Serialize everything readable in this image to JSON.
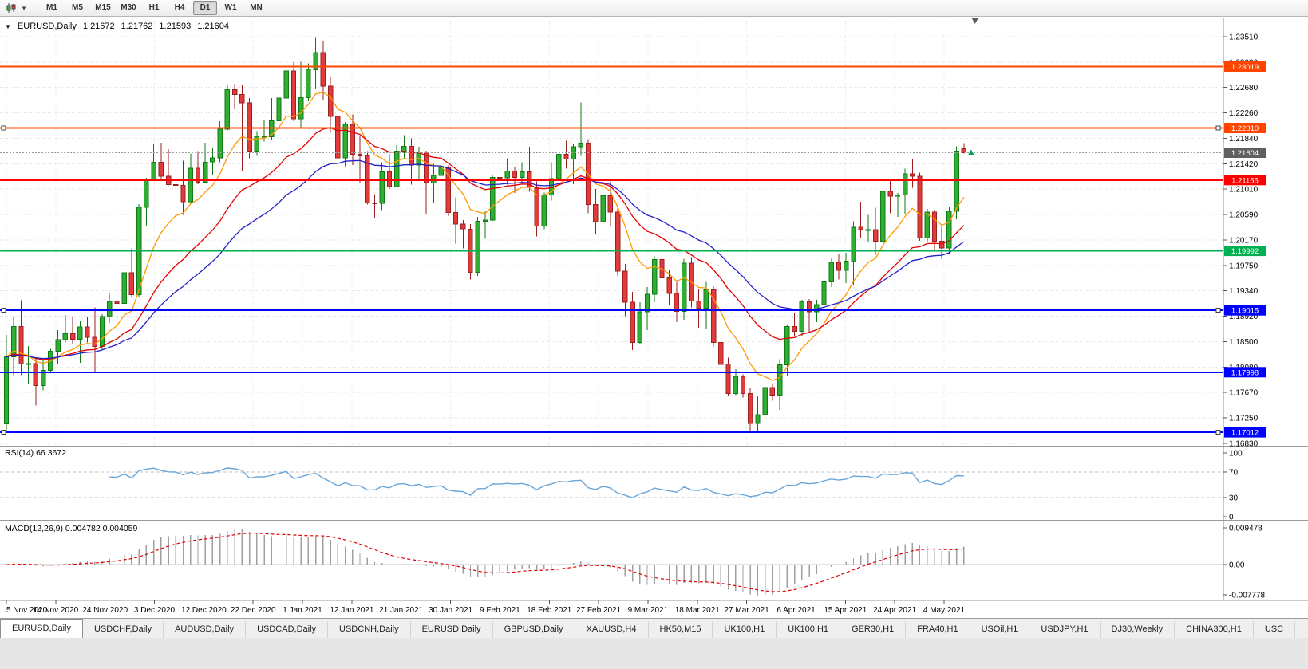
{
  "toolbar": {
    "chart_type_icon": "candlestick-chart-icon",
    "dropdown_icon": "chevron-down-icon",
    "timeframes": [
      "M1",
      "M5",
      "M15",
      "M30",
      "H1",
      "H4",
      "D1",
      "W1",
      "MN"
    ],
    "active_timeframe": "D1"
  },
  "header": {
    "expand_icon": "down-triangle-icon",
    "symbol": "EURUSD,Daily",
    "open": "1.21672",
    "high": "1.21762",
    "low": "1.21593",
    "close": "1.21604"
  },
  "price_axis": {
    "ticks": [
      "1.23510",
      "1.23090",
      "1.22680",
      "1.22260",
      "1.21840",
      "1.21420",
      "1.21010",
      "1.20590",
      "1.20170",
      "1.19750",
      "1.19340",
      "1.18920",
      "1.18500",
      "1.18080",
      "1.17670",
      "1.17250",
      "1.16830"
    ]
  },
  "date_axis": {
    "labels": [
      "5 Nov 2020",
      "14 Nov 2020",
      "24 Nov 2020",
      "3 Dec 2020",
      "12 Dec 2020",
      "22 Dec 2020",
      "1 Jan 2021",
      "12 Jan 2021",
      "21 Jan 2021",
      "30 Jan 2021",
      "9 Feb 2021",
      "18 Feb 2021",
      "27 Feb 2021",
      "9 Mar 2021",
      "18 Mar 2021",
      "27 Mar 2021",
      "6 Apr 2021",
      "15 Apr 2021",
      "24 Apr 2021",
      "4 May 2021"
    ]
  },
  "current_price": {
    "value": 1.21604,
    "label": "1.21604",
    "badge_color": "#5f5f5f"
  },
  "hlines": [
    {
      "price": 1.23019,
      "label": "1.23019",
      "color": "#ff4500",
      "width": 2,
      "handles": false
    },
    {
      "price": 1.2201,
      "label": "1.22010",
      "color": "#ff4500",
      "width": 2,
      "handles": true
    },
    {
      "price": 1.21155,
      "label": "1.21155",
      "color": "#ff0000",
      "width": 2,
      "handles": false
    },
    {
      "price": 1.19992,
      "label": "1.19992",
      "color": "#00b050",
      "width": 2,
      "handles": false
    },
    {
      "price": 1.19015,
      "label": "1.19015",
      "color": "#0000ff",
      "width": 2,
      "handles": true
    },
    {
      "price": 1.17998,
      "label": "1.17998",
      "color": "#0000ff",
      "width": 2,
      "handles": false
    },
    {
      "price": 1.17012,
      "label": "1.17012",
      "color": "#0000ff",
      "width": 2,
      "handles": true
    }
  ],
  "moving_averages": [
    {
      "period": 9,
      "type": "ema",
      "color": "#ff9900"
    },
    {
      "period": 21,
      "type": "ema",
      "color": "#e60000"
    },
    {
      "period": 34,
      "type": "ema",
      "color": "#2222cc"
    }
  ],
  "indicators": {
    "rsi": {
      "label": "RSI(14) 66.3672",
      "period": 14,
      "value": 66.3672,
      "levels": [
        "100",
        "70",
        "30",
        "0"
      ],
      "level_lines": [
        70,
        30
      ],
      "line_color": "#6aa5d8"
    },
    "macd": {
      "label": "MACD(12,26,9) 0.004782 0.004059",
      "fast": 12,
      "slow": 26,
      "signal": 9,
      "macd_value": 0.004782,
      "signal_value": 0.004059,
      "axis_labels": [
        "0.009478",
        "0.00",
        "-0.007778"
      ],
      "axis_values": [
        0.009478,
        0,
        -0.007778
      ],
      "histogram_color": "#a0a0a0",
      "signal_color": "#e00000"
    }
  },
  "candle_colors": {
    "up_fill": "#2fae33",
    "up_stroke": "#0f7a16",
    "down_fill": "#e23b3b",
    "down_stroke": "#9c1f1f"
  },
  "marker": {
    "shape": "up-arrow",
    "color": "#00a651"
  },
  "tabs": [
    "EURUSD,Daily",
    "USDCHF,Daily",
    "AUDUSD,Daily",
    "USDCAD,Daily",
    "USDCNH,Daily",
    "EURUSD,Daily",
    "GBPUSD,Daily",
    "XAUUSD,H4",
    "HK50,M15",
    "UK100,H1",
    "UK100,H1",
    "GER30,H1",
    "FRA40,H1",
    "USOil,H1",
    "USDJPY,H1",
    "DJ30,Weekly",
    "CHINA300,H1",
    "USC"
  ],
  "active_tab_index": 0,
  "chart_data": {
    "type": "candlestick",
    "title": "EURUSD,Daily",
    "ylim": [
      1.1683,
      1.2351
    ],
    "x_labels": [
      "5 Nov 2020",
      "14 Nov 2020",
      "24 Nov 2020",
      "3 Dec 2020",
      "12 Dec 2020",
      "22 Dec 2020",
      "1 Jan 2021",
      "12 Jan 2021",
      "21 Jan 2021",
      "30 Jan 2021",
      "9 Feb 2021",
      "18 Feb 2021",
      "27 Feb 2021",
      "9 Mar 2021",
      "18 Mar 2021",
      "27 Mar 2021",
      "6 Apr 2021",
      "15 Apr 2021",
      "24 Apr 2021",
      "4 May 2021"
    ],
    "candles": [
      [
        1.1715,
        1.1861,
        1.1703,
        1.1825
      ],
      [
        1.1825,
        1.189,
        1.1795,
        1.1875
      ],
      [
        1.1875,
        1.1918,
        1.1795,
        1.1813
      ],
      [
        1.1813,
        1.1843,
        1.178,
        1.1814
      ],
      [
        1.1814,
        1.1824,
        1.1745,
        1.1778
      ],
      [
        1.1778,
        1.1823,
        1.177,
        1.1803
      ],
      [
        1.1803,
        1.1838,
        1.1799,
        1.1834
      ],
      [
        1.1834,
        1.1869,
        1.1814,
        1.1853
      ],
      [
        1.1853,
        1.1894,
        1.1849,
        1.1863
      ],
      [
        1.1863,
        1.1891,
        1.1846,
        1.1854
      ],
      [
        1.1854,
        1.1885,
        1.1815,
        1.1874
      ],
      [
        1.1874,
        1.1891,
        1.1849,
        1.1857
      ],
      [
        1.1857,
        1.1906,
        1.18,
        1.1842
      ],
      [
        1.1842,
        1.1895,
        1.1836,
        1.1891
      ],
      [
        1.1891,
        1.1929,
        1.1881,
        1.1916
      ],
      [
        1.1916,
        1.1941,
        1.1906,
        1.1913
      ],
      [
        1.1913,
        1.1964,
        1.1909,
        1.1963
      ],
      [
        1.1963,
        1.2003,
        1.1923,
        1.1927
      ],
      [
        1.1927,
        1.2076,
        1.1924,
        1.2071
      ],
      [
        1.2071,
        1.2119,
        1.204,
        1.2115
      ],
      [
        1.2115,
        1.2175,
        1.2114,
        1.2145
      ],
      [
        1.2145,
        1.2177,
        1.2115,
        1.2122
      ],
      [
        1.2122,
        1.2166,
        1.2107,
        1.2108
      ],
      [
        1.2108,
        1.2134,
        1.2095,
        1.2107
      ],
      [
        1.2107,
        1.2147,
        1.2058,
        1.208
      ],
      [
        1.208,
        1.2159,
        1.2076,
        1.2135
      ],
      [
        1.2135,
        1.2163,
        1.2109,
        1.2112
      ],
      [
        1.2112,
        1.2177,
        1.211,
        1.2145
      ],
      [
        1.2145,
        1.2169,
        1.2123,
        1.2152
      ],
      [
        1.2152,
        1.2212,
        1.2145,
        1.2199
      ],
      [
        1.2199,
        1.2272,
        1.2197,
        1.2264
      ],
      [
        1.2264,
        1.2273,
        1.2232,
        1.2256
      ],
      [
        1.2256,
        1.2271,
        1.213,
        1.2242
      ],
      [
        1.2242,
        1.225,
        1.2151,
        1.2163
      ],
      [
        1.2163,
        1.2196,
        1.2155,
        1.2187
      ],
      [
        1.2187,
        1.2215,
        1.2179,
        1.2187
      ],
      [
        1.2187,
        1.225,
        1.2181,
        1.2213
      ],
      [
        1.2213,
        1.2275,
        1.2208,
        1.225
      ],
      [
        1.225,
        1.231,
        1.2245,
        1.2295
      ],
      [
        1.2295,
        1.2309,
        1.2212,
        1.2216
      ],
      [
        1.2216,
        1.231,
        1.22,
        1.2251
      ],
      [
        1.2251,
        1.2307,
        1.2245,
        1.2297
      ],
      [
        1.2297,
        1.2349,
        1.2266,
        1.2325
      ],
      [
        1.2325,
        1.2344,
        1.2246,
        1.227
      ],
      [
        1.227,
        1.2285,
        1.2193,
        1.222
      ],
      [
        1.222,
        1.2227,
        1.2132,
        1.2152
      ],
      [
        1.2152,
        1.2211,
        1.2138,
        1.2207
      ],
      [
        1.2207,
        1.2223,
        1.214,
        1.2158
      ],
      [
        1.2158,
        1.2188,
        1.2111,
        1.2155
      ],
      [
        1.2155,
        1.2163,
        1.2075,
        1.2078
      ],
      [
        1.2078,
        1.2092,
        1.2053,
        1.2077
      ],
      [
        1.2077,
        1.2145,
        1.2066,
        1.2129
      ],
      [
        1.2129,
        1.2158,
        1.2101,
        1.2105
      ],
      [
        1.2105,
        1.2173,
        1.2104,
        1.2163
      ],
      [
        1.2163,
        1.2189,
        1.215,
        1.2171
      ],
      [
        1.2171,
        1.2184,
        1.2108,
        1.214
      ],
      [
        1.214,
        1.217,
        1.2118,
        1.216
      ],
      [
        1.216,
        1.2164,
        1.2059,
        1.2111
      ],
      [
        1.2111,
        1.2142,
        1.2078,
        1.2123
      ],
      [
        1.2123,
        1.2157,
        1.2093,
        1.2136
      ],
      [
        1.2136,
        1.214,
        1.2056,
        1.2062
      ],
      [
        1.2062,
        1.2087,
        1.2011,
        1.2043
      ],
      [
        1.2043,
        1.205,
        1.2003,
        1.2035
      ],
      [
        1.2035,
        1.2043,
        1.1952,
        1.1964
      ],
      [
        1.1964,
        1.2055,
        1.1958,
        1.2048
      ],
      [
        1.2048,
        1.2064,
        1.2019,
        1.205
      ],
      [
        1.205,
        1.2124,
        1.2048,
        1.212
      ],
      [
        1.212,
        1.2145,
        1.2098,
        1.2119
      ],
      [
        1.2119,
        1.2151,
        1.2108,
        1.213
      ],
      [
        1.213,
        1.2136,
        1.2094,
        1.212
      ],
      [
        1.212,
        1.2145,
        1.211,
        1.2129
      ],
      [
        1.2129,
        1.217,
        1.2096,
        1.2104
      ],
      [
        1.2104,
        1.2113,
        1.2023,
        1.204
      ],
      [
        1.204,
        1.2095,
        1.2035,
        1.2091
      ],
      [
        1.2091,
        1.2145,
        1.2082,
        1.2118
      ],
      [
        1.2118,
        1.2168,
        1.2105,
        1.2158
      ],
      [
        1.2158,
        1.218,
        1.2134,
        1.215
      ],
      [
        1.215,
        1.2174,
        1.2109,
        1.217
      ],
      [
        1.217,
        1.2243,
        1.2155,
        1.2176
      ],
      [
        1.2176,
        1.2183,
        1.2061,
        1.2075
      ],
      [
        1.2075,
        1.2101,
        1.2026,
        1.2047
      ],
      [
        1.2047,
        1.2094,
        1.2043,
        1.209
      ],
      [
        1.209,
        1.2113,
        1.204,
        1.2063
      ],
      [
        1.2063,
        1.2069,
        1.1959,
        1.1966
      ],
      [
        1.1966,
        1.1978,
        1.1892,
        1.1915
      ],
      [
        1.1915,
        1.1932,
        1.1836,
        1.1849
      ],
      [
        1.1849,
        1.1915,
        1.1846,
        1.1899
      ],
      [
        1.1899,
        1.194,
        1.1869,
        1.1928
      ],
      [
        1.1928,
        1.199,
        1.1915,
        1.1985
      ],
      [
        1.1985,
        1.1989,
        1.191,
        1.1955
      ],
      [
        1.1955,
        1.1968,
        1.1911,
        1.1929
      ],
      [
        1.1929,
        1.1951,
        1.1882,
        1.19
      ],
      [
        1.19,
        1.1986,
        1.1886,
        1.1979
      ],
      [
        1.1979,
        1.1989,
        1.1906,
        1.1917
      ],
      [
        1.1917,
        1.1936,
        1.1873,
        1.1905
      ],
      [
        1.1905,
        1.1948,
        1.1871,
        1.1935
      ],
      [
        1.1935,
        1.1941,
        1.1842,
        1.1849
      ],
      [
        1.1849,
        1.1854,
        1.1809,
        1.1813
      ],
      [
        1.1813,
        1.1824,
        1.176,
        1.1765
      ],
      [
        1.1765,
        1.1805,
        1.1761,
        1.1793
      ],
      [
        1.1793,
        1.1796,
        1.1758,
        1.1765
      ],
      [
        1.1765,
        1.1774,
        1.1704,
        1.1716
      ],
      [
        1.1716,
        1.176,
        1.17,
        1.173
      ],
      [
        1.173,
        1.1781,
        1.1712,
        1.1775
      ],
      [
        1.1775,
        1.1781,
        1.1753,
        1.1761
      ],
      [
        1.1761,
        1.1821,
        1.1738,
        1.1812
      ],
      [
        1.1812,
        1.1878,
        1.1794,
        1.1875
      ],
      [
        1.1875,
        1.1898,
        1.186,
        1.1867
      ],
      [
        1.1867,
        1.1919,
        1.186,
        1.1916
      ],
      [
        1.1916,
        1.192,
        1.1865,
        1.1899
      ],
      [
        1.1899,
        1.1919,
        1.1882,
        1.1911
      ],
      [
        1.1911,
        1.1953,
        1.1878,
        1.1948
      ],
      [
        1.1948,
        1.1987,
        1.194,
        1.198
      ],
      [
        1.198,
        1.1994,
        1.1952,
        1.1967
      ],
      [
        1.1967,
        1.1996,
        1.1946,
        1.1982
      ],
      [
        1.1982,
        1.2048,
        1.1943,
        1.2038
      ],
      [
        1.2038,
        1.208,
        1.2021,
        1.2034
      ],
      [
        1.2034,
        1.2058,
        1.2013,
        1.2034
      ],
      [
        1.2034,
        1.207,
        1.1993,
        1.2015
      ],
      [
        1.2015,
        1.21,
        1.2012,
        1.2097
      ],
      [
        1.2097,
        1.2117,
        1.2061,
        1.2089
      ],
      [
        1.2089,
        1.2094,
        1.2055,
        1.2091
      ],
      [
        1.2091,
        1.2134,
        1.206,
        1.2126
      ],
      [
        1.2126,
        1.215,
        1.2103,
        1.2122
      ],
      [
        1.2122,
        1.2128,
        1.2016,
        1.202
      ],
      [
        1.202,
        1.2068,
        1.2013,
        1.2063
      ],
      [
        1.2063,
        1.2067,
        1.1999,
        1.2015
      ],
      [
        1.2015,
        1.2042,
        1.1986,
        1.2004
      ],
      [
        1.2004,
        1.2071,
        1.1994,
        1.2064
      ],
      [
        1.2064,
        1.2171,
        1.2051,
        1.2163
      ],
      [
        1.21672,
        1.21762,
        1.21593,
        1.21604
      ]
    ]
  }
}
